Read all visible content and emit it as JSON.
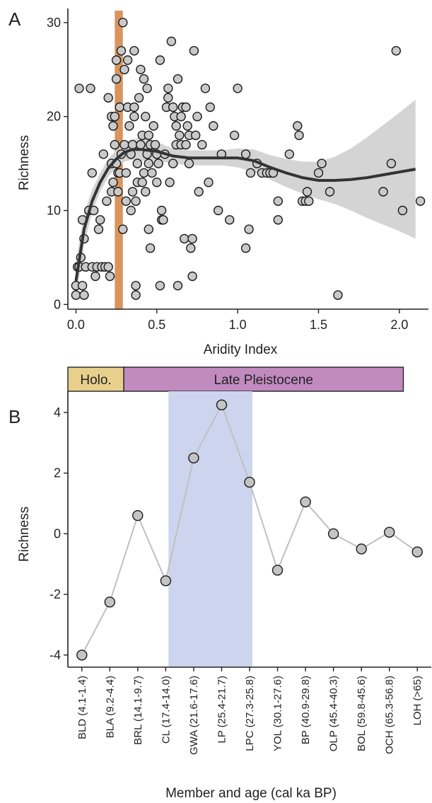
{
  "panels": {
    "a": {
      "letter": "A",
      "chart_data": {
        "type": "scatter",
        "xlabel": "Aridity Index",
        "ylabel": "Richness",
        "xlim": [
          -0.05,
          2.18
        ],
        "ylim": [
          -0.5,
          31.5
        ],
        "xticks": [
          0.0,
          0.5,
          1.0,
          1.5,
          2.0
        ],
        "xtick_labels": [
          "0.0",
          "0.5",
          "1.0",
          "1.5",
          "2.0"
        ],
        "yticks": [
          0,
          10,
          20,
          30
        ],
        "ytick_labels": [
          "0",
          "10",
          "20",
          "30"
        ],
        "highlight_band": {
          "x_range": [
            0.24,
            0.29
          ],
          "color": "#d9955e"
        },
        "trend": {
          "color": "#333333",
          "ci_color": "#d4d4d4",
          "x": [
            0.0,
            0.05,
            0.1,
            0.15,
            0.2,
            0.25,
            0.3,
            0.35,
            0.4,
            0.5,
            0.6,
            0.7,
            0.8,
            0.9,
            1.0,
            1.1,
            1.2,
            1.3,
            1.4,
            1.5,
            1.6,
            1.7,
            1.8,
            1.9,
            2.0,
            2.1
          ],
          "y": [
            2.5,
            8.0,
            11.0,
            13.0,
            14.5,
            15.5,
            16.2,
            16.5,
            16.5,
            16.3,
            15.8,
            15.6,
            15.6,
            15.6,
            15.6,
            15.3,
            14.6,
            14.0,
            13.5,
            13.2,
            13.2,
            13.3,
            13.5,
            13.8,
            14.1,
            14.4
          ],
          "lower": [
            0.5,
            6.3,
            9.8,
            12.0,
            13.6,
            14.6,
            15.2,
            15.4,
            15.3,
            15.3,
            15.0,
            14.8,
            14.8,
            14.8,
            14.6,
            14.1,
            13.3,
            12.5,
            11.8,
            11.2,
            10.7,
            10.0,
            9.2,
            8.5,
            7.8,
            7.0
          ],
          "upper": [
            4.5,
            9.7,
            12.2,
            14.0,
            15.5,
            16.4,
            17.2,
            17.6,
            17.7,
            17.3,
            16.6,
            16.4,
            16.4,
            16.4,
            16.6,
            16.5,
            15.9,
            15.5,
            15.2,
            15.2,
            15.7,
            16.6,
            17.8,
            19.1,
            20.4,
            21.8
          ]
        },
        "points": [
          [
            0.0,
            1
          ],
          [
            0.0,
            2
          ],
          [
            0.01,
            4
          ],
          [
            0.02,
            4
          ],
          [
            0.02,
            23
          ],
          [
            0.03,
            5
          ],
          [
            0.04,
            9
          ],
          [
            0.04,
            2
          ],
          [
            0.05,
            1
          ],
          [
            0.05,
            7
          ],
          [
            0.06,
            4
          ],
          [
            0.08,
            10
          ],
          [
            0.09,
            23
          ],
          [
            0.1,
            14
          ],
          [
            0.1,
            4
          ],
          [
            0.11,
            10
          ],
          [
            0.12,
            3
          ],
          [
            0.13,
            4
          ],
          [
            0.14,
            8
          ],
          [
            0.15,
            9
          ],
          [
            0.16,
            4
          ],
          [
            0.17,
            16
          ],
          [
            0.18,
            4
          ],
          [
            0.19,
            11
          ],
          [
            0.2,
            22
          ],
          [
            0.2,
            4
          ],
          [
            0.21,
            3
          ],
          [
            0.22,
            12
          ],
          [
            0.22,
            15
          ],
          [
            0.22,
            20
          ],
          [
            0.23,
            13
          ],
          [
            0.23,
            19
          ],
          [
            0.24,
            17
          ],
          [
            0.24,
            20
          ],
          [
            0.25,
            24
          ],
          [
            0.25,
            15
          ],
          [
            0.25,
            26
          ],
          [
            0.26,
            14
          ],
          [
            0.26,
            12
          ],
          [
            0.27,
            14
          ],
          [
            0.27,
            21
          ],
          [
            0.28,
            16
          ],
          [
            0.28,
            27
          ],
          [
            0.29,
            30
          ],
          [
            0.29,
            8
          ],
          [
            0.3,
            17
          ],
          [
            0.3,
            25
          ],
          [
            0.31,
            11
          ],
          [
            0.31,
            14
          ],
          [
            0.32,
            21
          ],
          [
            0.32,
            26
          ],
          [
            0.33,
            19
          ],
          [
            0.34,
            16
          ],
          [
            0.34,
            10
          ],
          [
            0.35,
            17
          ],
          [
            0.35,
            12
          ],
          [
            0.36,
            27
          ],
          [
            0.36,
            21
          ],
          [
            0.36,
            20
          ],
          [
            0.37,
            11
          ],
          [
            0.37,
            2
          ],
          [
            0.37,
            1
          ],
          [
            0.38,
            13
          ],
          [
            0.38,
            15
          ],
          [
            0.39,
            22
          ],
          [
            0.4,
            25
          ],
          [
            0.4,
            17
          ],
          [
            0.41,
            13
          ],
          [
            0.41,
            18
          ],
          [
            0.42,
            24
          ],
          [
            0.42,
            14
          ],
          [
            0.43,
            20
          ],
          [
            0.43,
            12
          ],
          [
            0.44,
            16
          ],
          [
            0.44,
            23
          ],
          [
            0.45,
            18
          ],
          [
            0.45,
            15
          ],
          [
            0.45,
            8
          ],
          [
            0.46,
            17
          ],
          [
            0.46,
            6
          ],
          [
            0.47,
            14
          ],
          [
            0.48,
            19
          ],
          [
            0.49,
            17
          ],
          [
            0.5,
            13
          ],
          [
            0.5,
            16
          ],
          [
            0.51,
            15
          ],
          [
            0.52,
            26
          ],
          [
            0.52,
            2
          ],
          [
            0.53,
            10
          ],
          [
            0.53,
            9
          ],
          [
            0.54,
            9
          ],
          [
            0.55,
            16
          ],
          [
            0.56,
            21
          ],
          [
            0.57,
            22
          ],
          [
            0.57,
            23
          ],
          [
            0.58,
            13
          ],
          [
            0.59,
            28
          ],
          [
            0.6,
            15
          ],
          [
            0.6,
            21
          ],
          [
            0.61,
            20
          ],
          [
            0.62,
            17
          ],
          [
            0.62,
            19
          ],
          [
            0.63,
            24
          ],
          [
            0.63,
            2
          ],
          [
            0.64,
            18
          ],
          [
            0.65,
            20
          ],
          [
            0.65,
            17
          ],
          [
            0.66,
            21
          ],
          [
            0.67,
            7
          ],
          [
            0.68,
            21
          ],
          [
            0.68,
            17
          ],
          [
            0.69,
            19
          ],
          [
            0.7,
            18
          ],
          [
            0.7,
            15
          ],
          [
            0.71,
            6
          ],
          [
            0.72,
            3
          ],
          [
            0.72,
            7
          ],
          [
            0.73,
            27
          ],
          [
            0.74,
            18
          ],
          [
            0.75,
            20
          ],
          [
            0.76,
            12
          ],
          [
            0.78,
            17
          ],
          [
            0.8,
            23
          ],
          [
            0.82,
            13
          ],
          [
            0.83,
            21
          ],
          [
            0.85,
            19
          ],
          [
            0.88,
            10
          ],
          [
            0.9,
            16
          ],
          [
            0.95,
            9
          ],
          [
            0.98,
            18
          ],
          [
            1.0,
            23
          ],
          [
            1.05,
            16
          ],
          [
            1.05,
            6
          ],
          [
            1.07,
            8
          ],
          [
            1.08,
            14
          ],
          [
            1.12,
            15
          ],
          [
            1.15,
            14
          ],
          [
            1.18,
            14
          ],
          [
            1.2,
            14
          ],
          [
            1.22,
            14
          ],
          [
            1.25,
            9
          ],
          [
            1.25,
            11
          ],
          [
            1.32,
            16
          ],
          [
            1.37,
            19
          ],
          [
            1.38,
            18
          ],
          [
            1.4,
            11
          ],
          [
            1.42,
            11
          ],
          [
            1.43,
            12
          ],
          [
            1.44,
            11
          ],
          [
            1.5,
            14
          ],
          [
            1.52,
            15
          ],
          [
            1.57,
            12
          ],
          [
            1.62,
            1
          ],
          [
            1.9,
            12
          ],
          [
            1.95,
            15
          ],
          [
            1.98,
            27
          ],
          [
            2.02,
            10
          ],
          [
            2.13,
            11
          ]
        ]
      }
    },
    "b": {
      "letter": "B",
      "era_bar": {
        "segments": [
          {
            "label": "Holo.",
            "color": "#e8d08c",
            "from": 0,
            "to": 2
          },
          {
            "label": "Late Pleistocene",
            "color": "#c28bc0",
            "from": 2,
            "to": 12
          }
        ]
      },
      "chart_data": {
        "type": "line",
        "xlabel": "Member and age (cal ka BP)",
        "ylabel": "Richness",
        "ylim": [
          -4.4,
          4.7
        ],
        "yticks": [
          -4,
          -2,
          0,
          2,
          4
        ],
        "ytick_labels": [
          "-4",
          "-2",
          "0",
          "2",
          "4"
        ],
        "highlight_band": {
          "from_index": 3.6,
          "to_index": 6.6,
          "color": "#cdd4ee"
        },
        "line_color": "#c0c0c0",
        "categories": [
          "BLD (4.1-1.4)",
          "BLA  (9.2-4.4)",
          "BRL (14.1-9.7)",
          "CL  (17.4-14.0)",
          "GWA (21.6-17.6)",
          "LP  (25.4-21.7)",
          "LPC (27.3-25.8)",
          "YOL (30.1-27.6)",
          "BP  (40.9-29.8)",
          "OLP (45.4-40.3)",
          "BOL (59.8-45.6)",
          "OCH (65.3-56.8)",
          "LOH (>65)"
        ],
        "values": [
          -4.0,
          -2.25,
          0.6,
          -1.55,
          2.5,
          4.25,
          1.7,
          -1.2,
          1.05,
          0.0,
          -0.5,
          0.05,
          -0.6
        ]
      }
    }
  }
}
